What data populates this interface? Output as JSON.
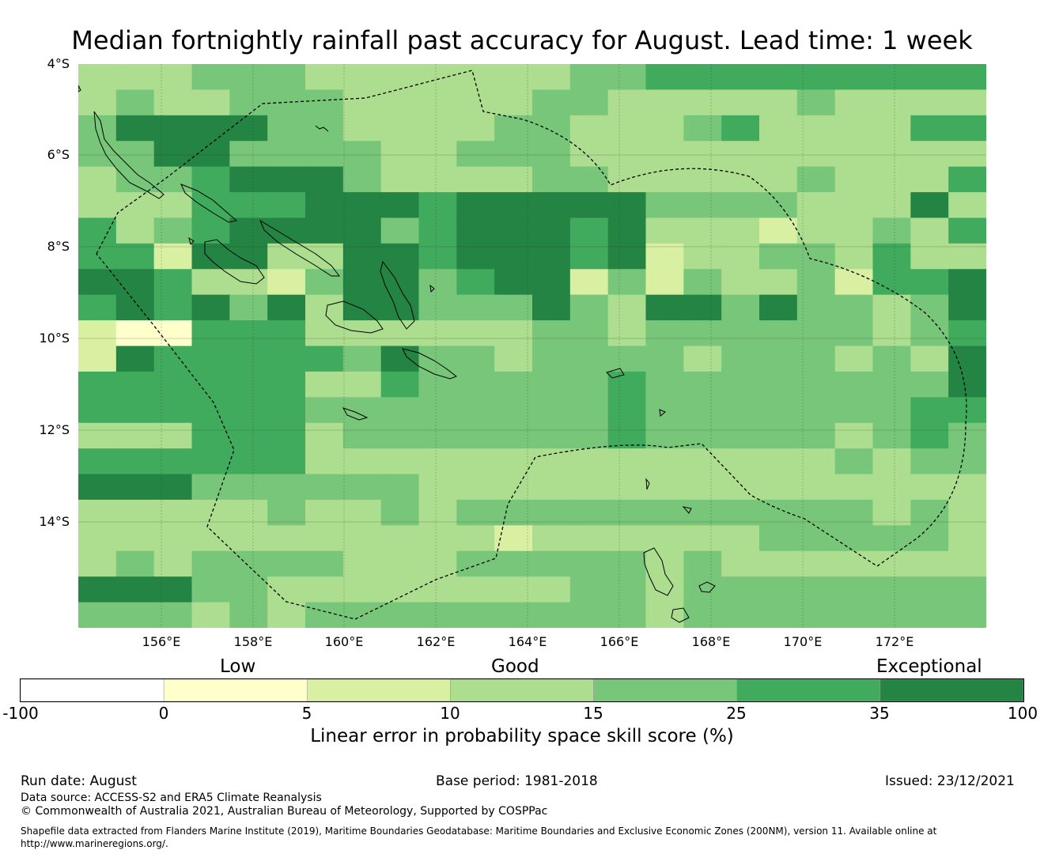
{
  "title": "Median fortnightly rainfall past accuracy for August. Lead time: 1 week",
  "map": {
    "lat_ticks": [
      "4°S",
      "6°S",
      "8°S",
      "10°S",
      "12°S",
      "14°S"
    ],
    "lon_ticks": [
      "156°E",
      "158°E",
      "160°E",
      "162°E",
      "164°E",
      "166°E",
      "168°E",
      "170°E",
      "172°E"
    ],
    "grid_columns": 24,
    "grid_rows": 22,
    "grid": [
      "333222333333322000000000",
      "323322233333223333323333",
      "211112233332233320333300",
      "221122223322233333333333",
      "322011123333223333323330",
      "333000111011111222233313",
      "032011112011101333433230",
      "004113311011101433223033",
      "110334211201142423324001",
      "010121311222123112122321",
      "455000333333223222222320",
      "410000021223222232223231",
      "000000330222220222222221",
      "000000222222220222222200",
      "333000322222220222223202",
      "000000333333333333332322",
      "111222222333333333333333",
      "333332332322222222222323",
      "333333333334333333222223",
      "323222233322222323333333",
      "111223333333322322222222",
      "222323222222222322222222"
    ],
    "grid_note": "cell codes: 0=25-35,1=35-100,2=15-25,3=10-15,4=5-10,5=0-5,6=-100-0 (see class_colors)",
    "class_colors": {
      "c_m100_0": "#ffffff",
      "c_0_5": "#ffffcc",
      "c_5_10": "#d9f0a3",
      "c_10_15": "#addd8e",
      "c_15_25": "#78c679",
      "c_25_35": "#41ab5d",
      "c_35_100": "#238443"
    }
  },
  "colorbar": {
    "categories": [
      "Low",
      "Good",
      "Exceptional"
    ],
    "ticks": [
      "-100",
      "0",
      "5",
      "10",
      "15",
      "25",
      "35",
      "100"
    ],
    "colors": [
      "#ffffff",
      "#ffffcc",
      "#d9f0a3",
      "#addd8e",
      "#78c679",
      "#41ab5d",
      "#238443"
    ],
    "label": "Linear error in probability space skill score (%)"
  },
  "footer": {
    "run_date": "Run date: August",
    "base_period": "Base period: 1981-2018",
    "issued": "Issued: 23/12/2021",
    "data_source": "Data source: ACCESS-S2 and ERA5 Climate Reanalysis",
    "copyright": "© Commonwealth of Australia 2021, Australian Bureau of Meteorology, Supported by COSPPac",
    "shapefile_line1": "Shapefile data extracted from Flanders Marine Institute (2019), Maritime Boundaries Geodatabase: Maritime Boundaries and Exclusive Economic Zones (200NM), version 11. Available online at",
    "shapefile_line2": "http://www.marineregions.org/."
  }
}
